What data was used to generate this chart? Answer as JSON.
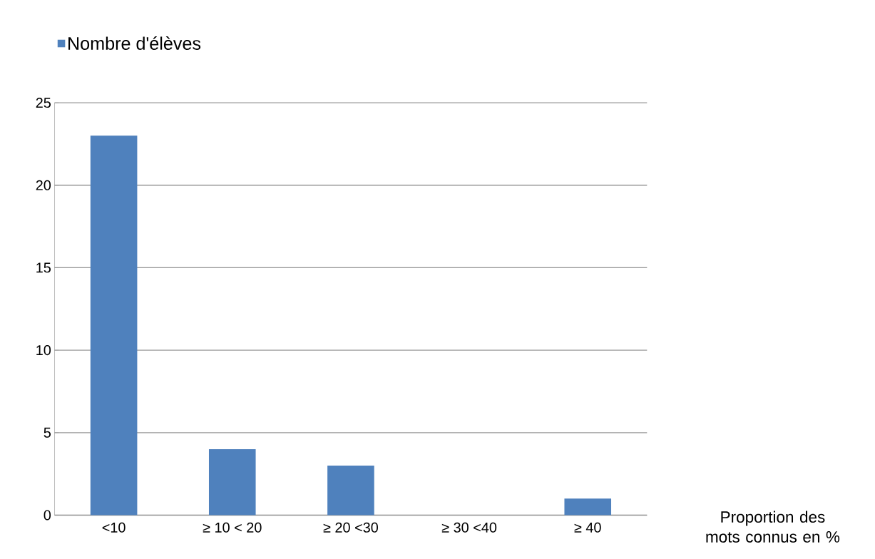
{
  "chart_data": {
    "type": "bar",
    "xlabel": "Proportion des mots connus en %",
    "categories": [
      "<10",
      "≥ 10 < 20",
      "≥ 20 <30",
      "≥ 30 <40",
      "≥ 40"
    ],
    "series": [
      {
        "name": "Nombre d'élèves",
        "color": "#4f81bd",
        "values": [
          23,
          4,
          3,
          0,
          1
        ]
      }
    ],
    "ylim": [
      0,
      25
    ],
    "yticks": [
      0,
      5,
      10,
      15,
      20,
      25
    ],
    "grid": "y",
    "legend": "top left"
  }
}
